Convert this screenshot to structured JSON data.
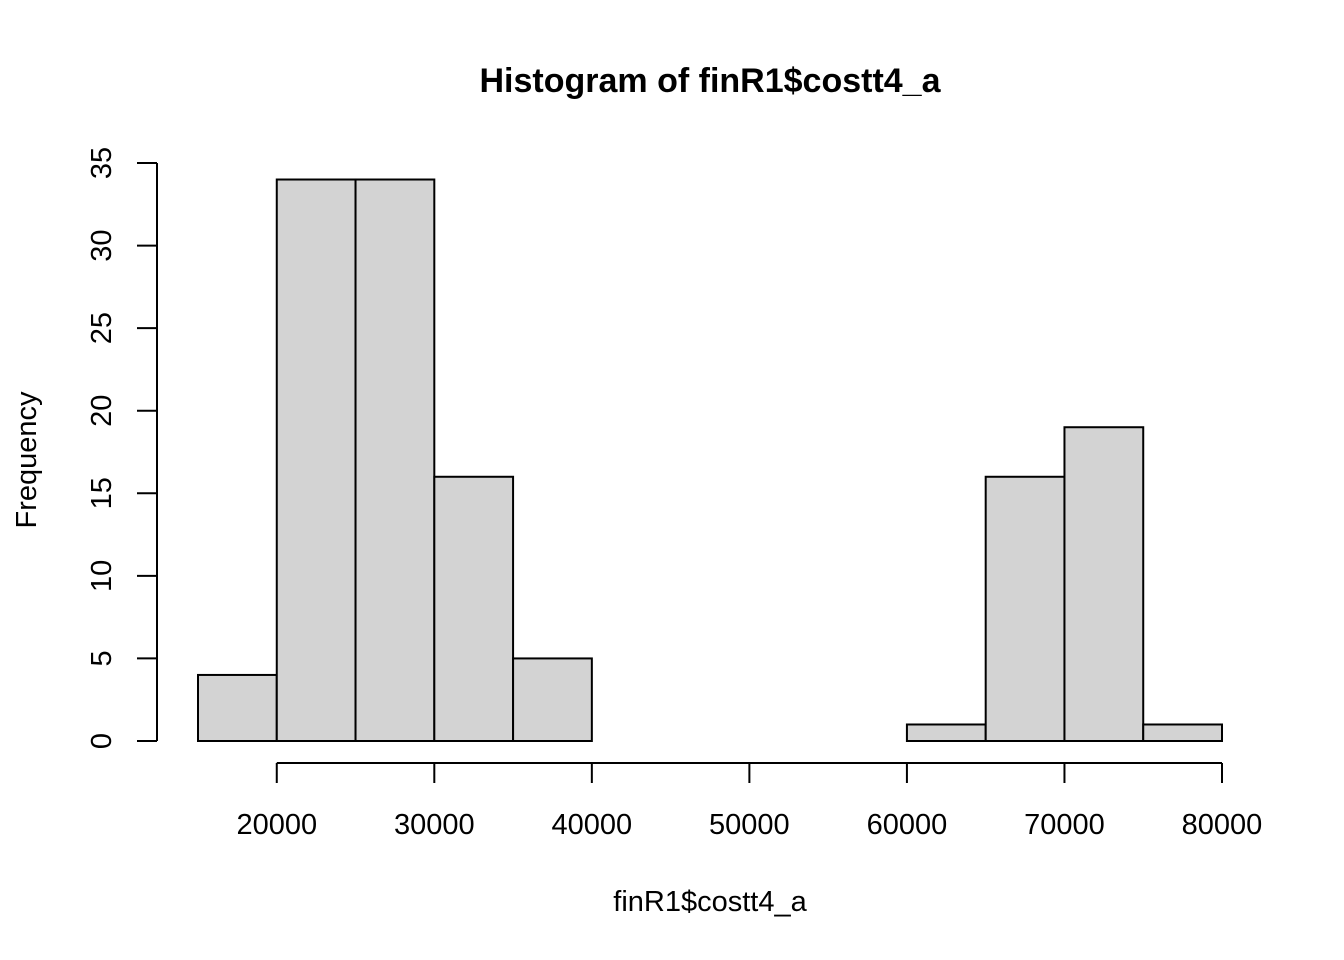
{
  "chart_data": {
    "type": "bar",
    "title": "Histogram of finR1$costt4_a",
    "xlabel": "finR1$costt4_a",
    "ylabel": "Frequency",
    "bin_edges": [
      15000,
      20000,
      25000,
      30000,
      35000,
      40000,
      45000,
      50000,
      55000,
      60000,
      65000,
      70000,
      75000,
      80000
    ],
    "values": [
      4,
      34,
      34,
      16,
      5,
      0,
      0,
      0,
      0,
      1,
      16,
      19,
      1
    ],
    "xticks": [
      20000,
      30000,
      40000,
      50000,
      60000,
      70000,
      80000
    ],
    "yticks": [
      0,
      5,
      10,
      15,
      20,
      25,
      30,
      35
    ],
    "xlim": [
      15000,
      80000
    ],
    "ylim": [
      0,
      35
    ],
    "bar_color": "#d3d3d3",
    "edge_color": "#000000",
    "grid": false
  }
}
